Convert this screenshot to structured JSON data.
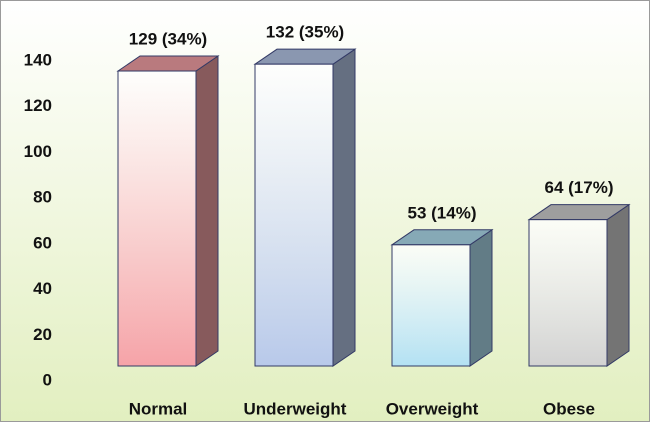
{
  "chart_data": {
    "type": "bar3d",
    "categories": [
      "Normal",
      "Underweight",
      "Overweight",
      "Obese"
    ],
    "values": [
      129,
      132,
      53,
      64
    ],
    "value_labels": [
      "129 (34%)",
      "132 (35%)",
      "53 (14%)",
      "64 (17%)"
    ],
    "colors": [
      "#f6a3a8",
      "#b8c9ea",
      "#b3e1f3",
      "#d2d2d2"
    ],
    "ylim": [
      0,
      150
    ],
    "yticks": [
      0,
      20,
      40,
      60,
      80,
      100,
      120,
      140
    ],
    "grid": false
  }
}
